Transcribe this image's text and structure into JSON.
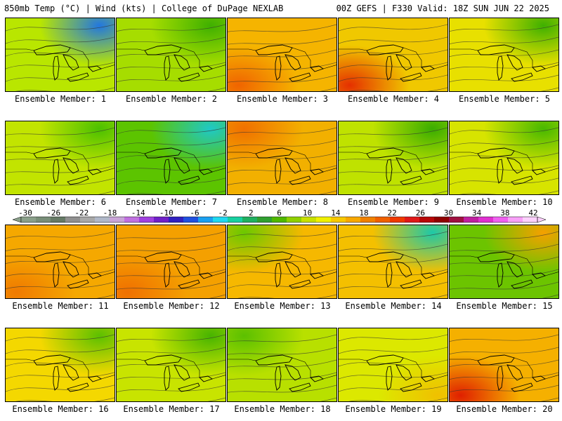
{
  "header": {
    "left": "850mb Temp (°C) | Wind (kts) | College of DuPage NEXLAB",
    "right": "00Z GEFS | F330 Valid: 18Z SUN JUN 22 2025"
  },
  "panels": [
    {
      "caption": "Ensemble Member: 1",
      "base": "#b9e600",
      "tint": "#2277e0",
      "corner": "tr",
      "hot": "bl"
    },
    {
      "caption": "Ensemble Member: 2",
      "base": "#a6dd00",
      "tint": "#3fb000",
      "corner": "tr",
      "hot": "bl"
    },
    {
      "caption": "Ensemble Member: 3",
      "base": "#f5b400",
      "tint": "#f06400",
      "corner": "bl",
      "hot": "bl"
    },
    {
      "caption": "Ensemble Member: 4",
      "base": "#f0c800",
      "tint": "#e53000",
      "corner": "bl",
      "hot": "bl"
    },
    {
      "caption": "Ensemble Member: 5",
      "base": "#e8e000",
      "tint": "#3fb000",
      "corner": "tr",
      "hot": "bl"
    },
    {
      "caption": "Ensemble Member: 6",
      "base": "#c2e400",
      "tint": "#4cc000",
      "corner": "tr",
      "hot": "bl"
    },
    {
      "caption": "Ensemble Member: 7",
      "base": "#5cc400",
      "tint": "#1ec8c8",
      "corner": "tr",
      "hot": "bl"
    },
    {
      "caption": "Ensemble Member: 8",
      "base": "#f2b000",
      "tint": "#f07000",
      "corner": "tl",
      "hot": "bl"
    },
    {
      "caption": "Ensemble Member: 9",
      "base": "#bfe200",
      "tint": "#3aac00",
      "corner": "tr",
      "hot": "bl"
    },
    {
      "caption": "Ensemble Member: 10",
      "base": "#d7e400",
      "tint": "#48b800",
      "corner": "tr",
      "hot": "bl"
    },
    {
      "caption": "Ensemble Member: 11",
      "base": "#f5a800",
      "tint": "#f07a00",
      "corner": "bl",
      "hot": "bl"
    },
    {
      "caption": "Ensemble Member: 12",
      "base": "#f4a000",
      "tint": "#f07000",
      "corner": "bl",
      "hot": "bl"
    },
    {
      "caption": "Ensemble Member: 13",
      "base": "#f6b800",
      "tint": "#6cc800",
      "corner": "tl",
      "hot": "bl"
    },
    {
      "caption": "Ensemble Member: 14",
      "base": "#f4c000",
      "tint": "#1ec8a8",
      "corner": "tr",
      "hot": "bl"
    },
    {
      "caption": "Ensemble Member: 15",
      "base": "#6cc400",
      "tint": "#f5a000",
      "corner": "tr",
      "hot": "bl"
    },
    {
      "caption": "Ensemble Member: 16",
      "base": "#f4d800",
      "tint": "#5cc000",
      "corner": "tr",
      "hot": "bl"
    },
    {
      "caption": "Ensemble Member: 17",
      "base": "#c8e400",
      "tint": "#48b400",
      "corner": "tr",
      "hot": "bl"
    },
    {
      "caption": "Ensemble Member: 18",
      "base": "#b8e000",
      "tint": "#5cc000",
      "corner": "tl",
      "hot": "bl"
    },
    {
      "caption": "Ensemble Member: 19",
      "base": "#dce800",
      "tint": "#f0c000",
      "corner": "br",
      "hot": "bl"
    },
    {
      "caption": "Ensemble Member: 20",
      "base": "#f5b000",
      "tint": "#e02000",
      "corner": "bl",
      "hot": "bl"
    }
  ],
  "colorbar": {
    "labels": [
      "-30",
      "-26",
      "-22",
      "-18",
      "-14",
      "-10",
      "-6",
      "-2",
      "2",
      "6",
      "10",
      "14",
      "18",
      "22",
      "26",
      "30",
      "34",
      "38",
      "42"
    ],
    "colors": [
      "#8aa08a",
      "#788e78",
      "#667a66",
      "#909090",
      "#a8a8a8",
      "#b0b8c8",
      "#c9a4d8",
      "#c070e0",
      "#a040e0",
      "#7020c8",
      "#3020c0",
      "#2050e0",
      "#1aa0f0",
      "#20d8f0",
      "#18d0a0",
      "#20b060",
      "#30a030",
      "#50b800",
      "#90d000",
      "#c8e000",
      "#f0f000",
      "#f8c800",
      "#f8a800",
      "#f08000",
      "#f06000",
      "#f03800",
      "#e01818",
      "#b80808",
      "#900000",
      "#a01040",
      "#c020a0",
      "#e030d0",
      "#f060f0",
      "#f8a0f8",
      "#fcd0fc"
    ]
  }
}
